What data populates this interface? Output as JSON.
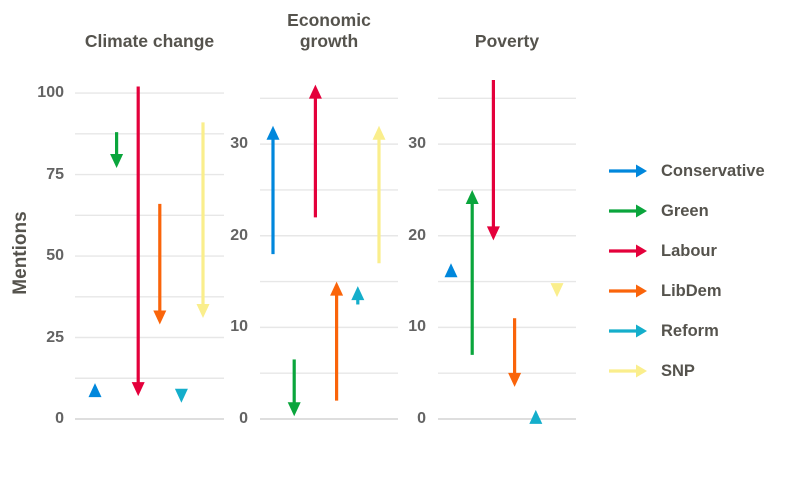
{
  "chart_data": {
    "type": "scatter",
    "mark": "arrow",
    "description": "Change in mentions of topics by UK political party; arrows point from start value to end value",
    "ylabel": "Mentions",
    "grid": true,
    "colors": {
      "Conservative": "#0087DC",
      "Green": "#0AA53C",
      "Labour": "#E4003B",
      "LibDem": "#FA640A",
      "Reform": "#14AECB",
      "SNP": "#FAEE8C"
    },
    "grid_color": "#E7E7E7",
    "baseline_color": "#DEDEDE",
    "title_color": "#55534D",
    "tick_color": "#636363",
    "panels": [
      {
        "title": "Climate change",
        "ylim": [
          0,
          104
        ],
        "yticks": [
          0,
          25,
          50,
          75,
          100
        ],
        "gridlines": [
          0,
          12.5,
          25,
          37.5,
          50,
          62.5,
          75,
          87.5,
          100
        ],
        "series": [
          {
            "name": "Conservative",
            "start": 8,
            "end": 11
          },
          {
            "name": "Green",
            "start": 88,
            "end": 77
          },
          {
            "name": "Labour",
            "start": 102,
            "end": 7
          },
          {
            "name": "LibDem",
            "start": 66,
            "end": 29
          },
          {
            "name": "Reform",
            "start": 8.5,
            "end": 5
          },
          {
            "name": "SNP",
            "start": 91,
            "end": 31
          }
        ]
      },
      {
        "title": "Economic\ngrowth",
        "ylim": [
          0,
          37
        ],
        "yticks": [
          0,
          10,
          20,
          30
        ],
        "gridlines": [
          0,
          5,
          10,
          15,
          20,
          25,
          30,
          35
        ],
        "series": [
          {
            "name": "Conservative",
            "start": 18,
            "end": 32
          },
          {
            "name": "Green",
            "start": 6.5,
            "end": 0.3
          },
          {
            "name": "Labour",
            "start": 22,
            "end": 36.5
          },
          {
            "name": "LibDem",
            "start": 2,
            "end": 15
          },
          {
            "name": "Reform",
            "start": 12.5,
            "end": 14.5
          },
          {
            "name": "SNP",
            "start": 17,
            "end": 32
          }
        ]
      },
      {
        "title": "Poverty",
        "ylim": [
          0,
          37
        ],
        "yticks": [
          0,
          10,
          20,
          30
        ],
        "gridlines": [
          0,
          5,
          10,
          15,
          20,
          25,
          30,
          35
        ],
        "series": [
          {
            "name": "Conservative",
            "start": 15.5,
            "end": 17
          },
          {
            "name": "Green",
            "start": 7,
            "end": 25
          },
          {
            "name": "Labour",
            "start": 37,
            "end": 19.5
          },
          {
            "name": "LibDem",
            "start": 11,
            "end": 3.5
          },
          {
            "name": "Reform",
            "start": 0,
            "end": 1
          },
          {
            "name": "SNP",
            "start": 14.5,
            "end": 13.3
          }
        ]
      }
    ],
    "legend": {
      "position": "right",
      "items": [
        "Conservative",
        "Green",
        "Labour",
        "LibDem",
        "Reform",
        "SNP"
      ]
    }
  }
}
